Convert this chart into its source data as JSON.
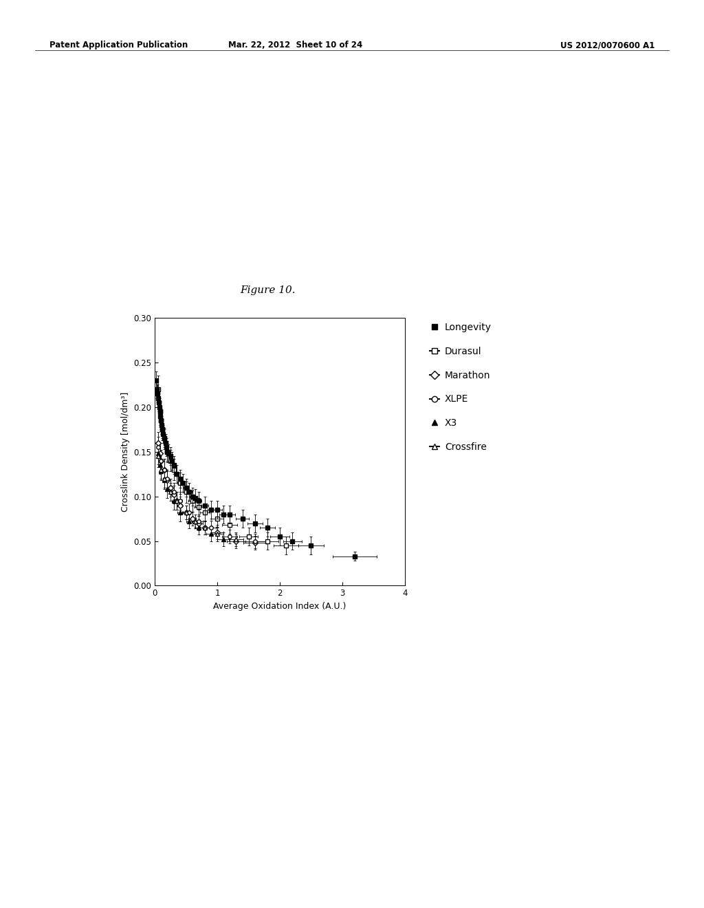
{
  "figure_title": "Figure 10.",
  "xlabel": "Average Oxidation Index (A.U.)",
  "ylabel": "Crosslink Density [mol/dm³]",
  "xlim": [
    0,
    4
  ],
  "ylim": [
    0.0,
    0.3
  ],
  "xticks": [
    0,
    1,
    2,
    3,
    4
  ],
  "yticks": [
    0.0,
    0.05,
    0.1,
    0.15,
    0.2,
    0.25,
    0.3
  ],
  "header_left": "Patent Application Publication",
  "header_mid": "Mar. 22, 2012  Sheet 10 of 24",
  "header_right": "US 2012/0070600 A1",
  "legend_entries": [
    "Longevity",
    "Durasul",
    "Marathon",
    "XLPE",
    "X3",
    "Crossfire"
  ],
  "longevity": {
    "x": [
      0.02,
      0.03,
      0.04,
      0.05,
      0.06,
      0.07,
      0.08,
      0.09,
      0.1,
      0.11,
      0.12,
      0.13,
      0.15,
      0.17,
      0.18,
      0.2,
      0.22,
      0.25,
      0.27,
      0.3,
      0.35,
      0.4,
      0.45,
      0.5,
      0.55,
      0.6,
      0.65,
      0.7,
      0.8,
      0.9,
      1.0,
      1.1,
      1.2,
      1.4,
      1.6,
      1.8,
      2.0,
      2.2,
      2.5,
      3.2
    ],
    "y": [
      0.23,
      0.22,
      0.215,
      0.21,
      0.205,
      0.2,
      0.195,
      0.19,
      0.185,
      0.18,
      0.175,
      0.17,
      0.165,
      0.16,
      0.155,
      0.15,
      0.148,
      0.145,
      0.14,
      0.135,
      0.125,
      0.12,
      0.115,
      0.11,
      0.105,
      0.1,
      0.098,
      0.095,
      0.09,
      0.085,
      0.085,
      0.08,
      0.08,
      0.075,
      0.07,
      0.065,
      0.055,
      0.05,
      0.045,
      0.033
    ],
    "xerr": [
      0.01,
      0.01,
      0.01,
      0.01,
      0.01,
      0.01,
      0.01,
      0.01,
      0.01,
      0.01,
      0.01,
      0.01,
      0.01,
      0.01,
      0.01,
      0.01,
      0.01,
      0.02,
      0.02,
      0.02,
      0.03,
      0.03,
      0.03,
      0.04,
      0.04,
      0.04,
      0.05,
      0.05,
      0.06,
      0.06,
      0.07,
      0.07,
      0.08,
      0.1,
      0.12,
      0.12,
      0.15,
      0.15,
      0.2,
      0.35
    ],
    "yerr": [
      0.01,
      0.01,
      0.01,
      0.01,
      0.01,
      0.01,
      0.01,
      0.01,
      0.01,
      0.01,
      0.01,
      0.01,
      0.01,
      0.01,
      0.01,
      0.01,
      0.01,
      0.01,
      0.01,
      0.01,
      0.01,
      0.01,
      0.01,
      0.01,
      0.01,
      0.01,
      0.01,
      0.01,
      0.01,
      0.01,
      0.01,
      0.01,
      0.01,
      0.01,
      0.01,
      0.01,
      0.01,
      0.01,
      0.01,
      0.005
    ]
  },
  "durasul": {
    "x": [
      0.05,
      0.08,
      0.1,
      0.12,
      0.15,
      0.2,
      0.25,
      0.3,
      0.4,
      0.5,
      0.6,
      0.7,
      0.8,
      1.0,
      1.2,
      1.5,
      1.8,
      2.1
    ],
    "y": [
      0.22,
      0.195,
      0.185,
      0.175,
      0.165,
      0.15,
      0.14,
      0.13,
      0.115,
      0.105,
      0.095,
      0.088,
      0.082,
      0.075,
      0.068,
      0.055,
      0.05,
      0.045
    ],
    "xerr": [
      0.01,
      0.01,
      0.01,
      0.01,
      0.01,
      0.02,
      0.02,
      0.03,
      0.04,
      0.05,
      0.06,
      0.07,
      0.08,
      0.1,
      0.12,
      0.15,
      0.18,
      0.2
    ],
    "yerr": [
      0.015,
      0.012,
      0.012,
      0.012,
      0.012,
      0.012,
      0.012,
      0.012,
      0.012,
      0.012,
      0.012,
      0.01,
      0.01,
      0.01,
      0.01,
      0.01,
      0.01,
      0.01
    ]
  },
  "marathon": {
    "x": [
      0.05,
      0.08,
      0.1,
      0.15,
      0.2,
      0.25,
      0.3,
      0.35,
      0.4,
      0.5,
      0.6,
      0.7,
      0.8,
      1.0,
      1.3,
      1.6
    ],
    "y": [
      0.16,
      0.148,
      0.14,
      0.13,
      0.118,
      0.11,
      0.102,
      0.095,
      0.09,
      0.082,
      0.075,
      0.07,
      0.065,
      0.06,
      0.05,
      0.048
    ],
    "xerr": [
      0.01,
      0.01,
      0.01,
      0.02,
      0.02,
      0.03,
      0.03,
      0.04,
      0.04,
      0.05,
      0.06,
      0.07,
      0.08,
      0.1,
      0.15,
      0.18
    ],
    "yerr": [
      0.012,
      0.012,
      0.012,
      0.012,
      0.01,
      0.01,
      0.01,
      0.01,
      0.01,
      0.008,
      0.008,
      0.008,
      0.008,
      0.008,
      0.008,
      0.008
    ]
  },
  "xlpe": {
    "x": [
      0.05,
      0.1,
      0.15,
      0.2,
      0.3,
      0.4,
      0.55,
      0.7,
      0.9,
      1.2,
      1.6
    ],
    "y": [
      0.155,
      0.14,
      0.13,
      0.12,
      0.105,
      0.095,
      0.082,
      0.072,
      0.065,
      0.055,
      0.05
    ],
    "xerr": [
      0.01,
      0.01,
      0.02,
      0.02,
      0.03,
      0.04,
      0.05,
      0.07,
      0.08,
      0.12,
      0.18
    ],
    "yerr": [
      0.012,
      0.012,
      0.012,
      0.01,
      0.01,
      0.01,
      0.01,
      0.008,
      0.008,
      0.008,
      0.008
    ]
  },
  "x3": {
    "x": [
      0.05,
      0.08,
      0.1,
      0.15,
      0.2,
      0.3,
      0.4,
      0.55,
      0.7,
      0.9,
      1.1
    ],
    "y": [
      0.148,
      0.135,
      0.128,
      0.118,
      0.108,
      0.095,
      0.082,
      0.072,
      0.065,
      0.058,
      0.052
    ],
    "xerr": [
      0.01,
      0.01,
      0.01,
      0.02,
      0.02,
      0.03,
      0.04,
      0.05,
      0.07,
      0.08,
      0.1
    ],
    "yerr": [
      0.012,
      0.01,
      0.01,
      0.01,
      0.01,
      0.01,
      0.01,
      0.008,
      0.008,
      0.008,
      0.008
    ]
  },
  "crossfire": {
    "x": [
      0.05,
      0.1,
      0.15,
      0.25,
      0.35,
      0.5,
      0.65,
      0.8,
      1.0,
      1.3
    ],
    "y": [
      0.145,
      0.13,
      0.12,
      0.105,
      0.095,
      0.082,
      0.072,
      0.065,
      0.058,
      0.052
    ],
    "xerr": [
      0.01,
      0.01,
      0.02,
      0.02,
      0.03,
      0.05,
      0.06,
      0.08,
      0.1,
      0.12
    ],
    "yerr": [
      0.012,
      0.01,
      0.01,
      0.01,
      0.01,
      0.008,
      0.008,
      0.008,
      0.008,
      0.008
    ]
  }
}
